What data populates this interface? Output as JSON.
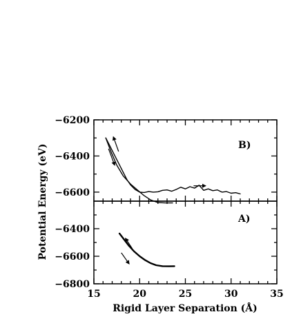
{
  "chart_data": [
    {
      "panel": "B)",
      "type": "line",
      "xlim": [
        15,
        35
      ],
      "ylim": [
        -6650,
        -6200
      ],
      "y_ticks_labeled": [
        -6200,
        -6400,
        -6600
      ],
      "series": [
        {
          "values_xy": [
            [
              16.3,
              -6300
            ],
            [
              16.8,
              -6350
            ],
            [
              17.4,
              -6410
            ],
            [
              18.0,
              -6470
            ],
            [
              18.6,
              -6530
            ],
            [
              19.0,
              -6560
            ],
            [
              19.5,
              -6585
            ],
            [
              20.0,
              -6600
            ],
            [
              20.5,
              -6602
            ],
            [
              21.0,
              -6597
            ],
            [
              21.5,
              -6600
            ],
            [
              22.0,
              -6598
            ],
            [
              22.5,
              -6590
            ],
            [
              23.0,
              -6588
            ],
            [
              23.5,
              -6595
            ],
            [
              24.0,
              -6585
            ],
            [
              24.5,
              -6573
            ],
            [
              25.0,
              -6582
            ],
            [
              25.5,
              -6570
            ],
            [
              26.0,
              -6578
            ],
            [
              26.5,
              -6562
            ],
            [
              27.0,
              -6590
            ],
            [
              27.5,
              -6582
            ],
            [
              28.0,
              -6592
            ],
            [
              28.5,
              -6588
            ],
            [
              29.0,
              -6600
            ],
            [
              29.5,
              -6597
            ],
            [
              30.0,
              -6606
            ],
            [
              30.5,
              -6603
            ],
            [
              31.0,
              -6610
            ]
          ]
        },
        {
          "values_xy": [
            [
              16.3,
              -6300
            ],
            [
              16.9,
              -6380
            ],
            [
              17.5,
              -6450
            ],
            [
              18.2,
              -6510
            ],
            [
              19.0,
              -6555
            ],
            [
              19.8,
              -6590
            ],
            [
              20.5,
              -6620
            ],
            [
              21.2,
              -6643
            ],
            [
              22.0,
              -6658
            ],
            [
              22.8,
              -6660
            ],
            [
              23.6,
              -6660
            ]
          ]
        }
      ],
      "arrows": [
        {
          "from": [
            17.7,
            -6375
          ],
          "to": [
            17.1,
            -6290
          ]
        },
        {
          "from": [
            16.6,
            -6360
          ],
          "to": [
            17.3,
            -6455
          ]
        },
        {
          "from": [
            25.9,
            -6565
          ],
          "to": [
            27.3,
            -6565
          ]
        }
      ]
    },
    {
      "panel": "A)",
      "type": "line",
      "xlim": [
        15,
        35
      ],
      "ylim": [
        -6800,
        -6200
      ],
      "x_ticks_labeled": [
        15,
        20,
        25,
        30,
        35
      ],
      "y_ticks_labeled": [
        -6400,
        -6600,
        -6800
      ],
      "series": [
        {
          "values_xy": [
            [
              17.8,
              -6435
            ],
            [
              18.3,
              -6478
            ],
            [
              18.8,
              -6522
            ],
            [
              19.4,
              -6565
            ],
            [
              20.0,
              -6600
            ],
            [
              20.6,
              -6628
            ],
            [
              21.2,
              -6650
            ],
            [
              21.8,
              -6665
            ],
            [
              22.5,
              -6672
            ],
            [
              23.2,
              -6673
            ],
            [
              23.8,
              -6672
            ]
          ]
        }
      ],
      "arrows": [
        {
          "from": [
            19.2,
            -6545
          ],
          "to": [
            18.4,
            -6465
          ]
        },
        {
          "from": [
            18.0,
            -6575
          ],
          "to": [
            18.9,
            -6660
          ]
        }
      ]
    }
  ],
  "axes": {
    "xlabel": "Rigid Layer Separation (Å)",
    "ylabel": "Potential Energy (eV)"
  }
}
